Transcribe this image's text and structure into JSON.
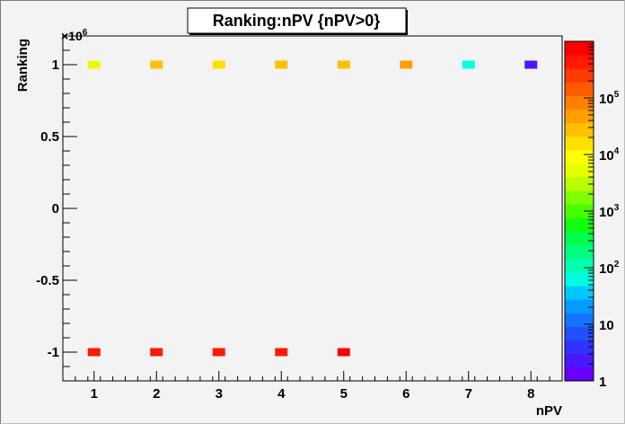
{
  "chart_data": {
    "type": "heatmap",
    "title": "Ranking:nPV {nPV>0}",
    "xlabel": "nPV",
    "ylabel": "Ranking",
    "y_multiplier": "×10",
    "y_multiplier_exp": "6",
    "xlim": [
      0.5,
      8.5
    ],
    "ylim": [
      -1200000,
      1200000
    ],
    "x_ticks": [
      "1",
      "2",
      "3",
      "4",
      "5",
      "6",
      "7",
      "8"
    ],
    "y_ticks": [
      {
        "value": 1000000,
        "label": "1"
      },
      {
        "value": 500000,
        "label": "0.5"
      },
      {
        "value": 0,
        "label": "0"
      },
      {
        "value": -500000,
        "label": "-0.5"
      },
      {
        "value": -1000000,
        "label": "-1"
      }
    ],
    "z_scale": "log",
    "zlim": [
      1,
      1000000
    ],
    "z_ticks": [
      {
        "base": "1",
        "exp": "",
        "value": 1
      },
      {
        "base": "10",
        "exp": "",
        "value": 10
      },
      {
        "base": "10",
        "exp": "2",
        "value": 100
      },
      {
        "base": "10",
        "exp": "3",
        "value": 1000
      },
      {
        "base": "10",
        "exp": "4",
        "value": 10000
      },
      {
        "base": "10",
        "exp": "5",
        "value": 100000
      }
    ],
    "palette": [
      "#6600ff",
      "#4a18ff",
      "#3232ff",
      "#2050ff",
      "#1474ff",
      "#009cff",
      "#00c8ff",
      "#00ffe0",
      "#00ffb0",
      "#00ff80",
      "#00ff4a",
      "#10ff10",
      "#48ff00",
      "#80ff00",
      "#b8ff00",
      "#e6ff00",
      "#ffff00",
      "#ffe000",
      "#ffc000",
      "#ffa000",
      "#ff8000",
      "#ff5a00",
      "#ff3a00",
      "#ff1a00",
      "#ff0000"
    ],
    "cells": [
      {
        "x": 1,
        "y": 1000000,
        "z": 5000
      },
      {
        "x": 2,
        "y": 1000000,
        "z": 25000
      },
      {
        "x": 3,
        "y": 1000000,
        "z": 20000
      },
      {
        "x": 4,
        "y": 1000000,
        "z": 25000
      },
      {
        "x": 5,
        "y": 1000000,
        "z": 25000
      },
      {
        "x": 6,
        "y": 1000000,
        "z": 50000
      },
      {
        "x": 7,
        "y": 1000000,
        "z": 80
      },
      {
        "x": 8,
        "y": 1000000,
        "z": 3
      },
      {
        "x": 1,
        "y": -1000000,
        "z": 400000
      },
      {
        "x": 2,
        "y": -1000000,
        "z": 400000
      },
      {
        "x": 3,
        "y": -1000000,
        "z": 400000
      },
      {
        "x": 4,
        "y": -1000000,
        "z": 400000
      },
      {
        "x": 5,
        "y": -1000000,
        "z": 800000
      }
    ]
  }
}
